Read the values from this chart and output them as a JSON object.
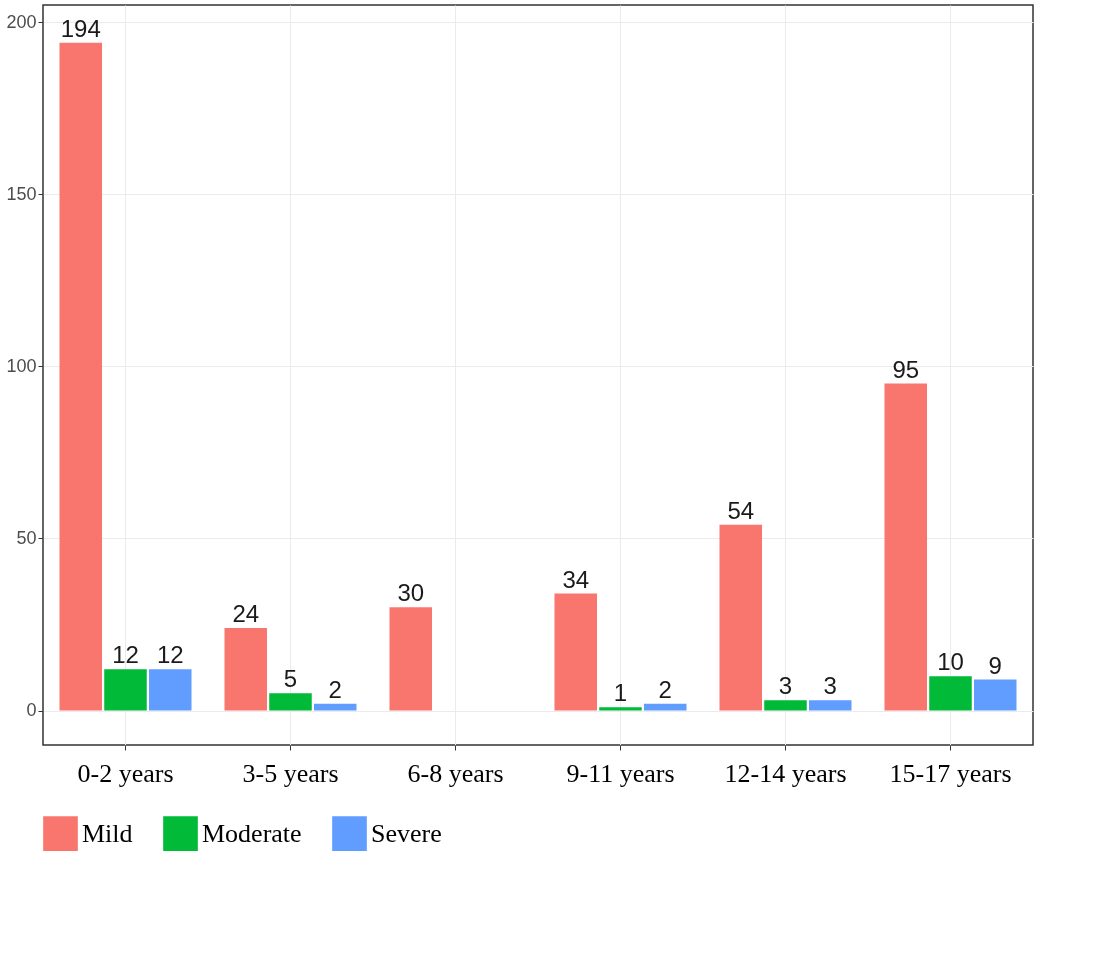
{
  "chart_data": {
    "type": "bar",
    "categories": [
      "0-2 years",
      "3-5 years",
      "6-8 years",
      "9-11 years",
      "12-14 years",
      "15-17 years"
    ],
    "series": [
      {
        "name": "Mild",
        "color": "#f8766d",
        "values": [
          194,
          24,
          30,
          34,
          54,
          95
        ]
      },
      {
        "name": "Moderate",
        "color": "#00ba38",
        "values": [
          12,
          5,
          null,
          1,
          3,
          10
        ]
      },
      {
        "name": "Severe",
        "color": "#619cff",
        "values": [
          12,
          2,
          null,
          2,
          3,
          9
        ]
      }
    ],
    "ylim": [
      -10,
      205
    ],
    "yticks": [
      0,
      50,
      100,
      150,
      200
    ],
    "grid": true,
    "legend": "bottom",
    "data_labels": true
  }
}
